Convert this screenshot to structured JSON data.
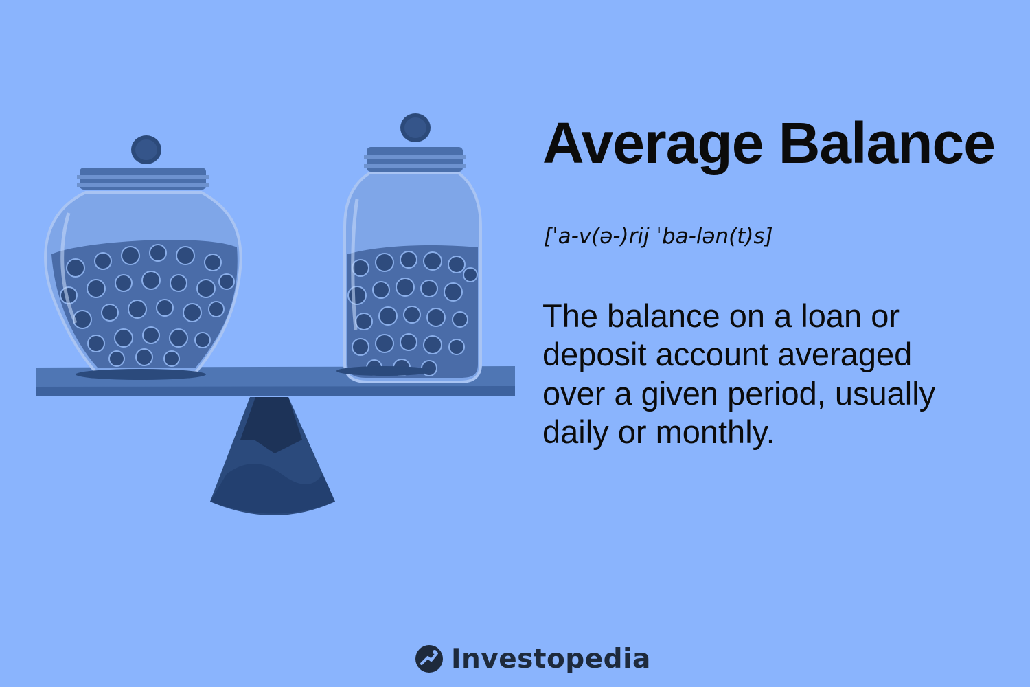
{
  "term": {
    "title": "Average Balance",
    "pronunciation": "[ˈa-v(ə-)rij ˈba-lən(t)s]",
    "definition_lines": [
      "The balance on a loan or",
      "deposit account averaged",
      "over a given period, usually",
      "daily or monthly."
    ]
  },
  "brand": {
    "name": "Investopedia",
    "logo_icon": "investopedia-logo-icon"
  },
  "illustration": {
    "icon": "seesaw-coin-jars-illustration",
    "colors": {
      "background": "#8ab4fd",
      "plank": "#4f76b4",
      "fulcrum": "#233f6e",
      "coin": "#3e5f97"
    }
  }
}
